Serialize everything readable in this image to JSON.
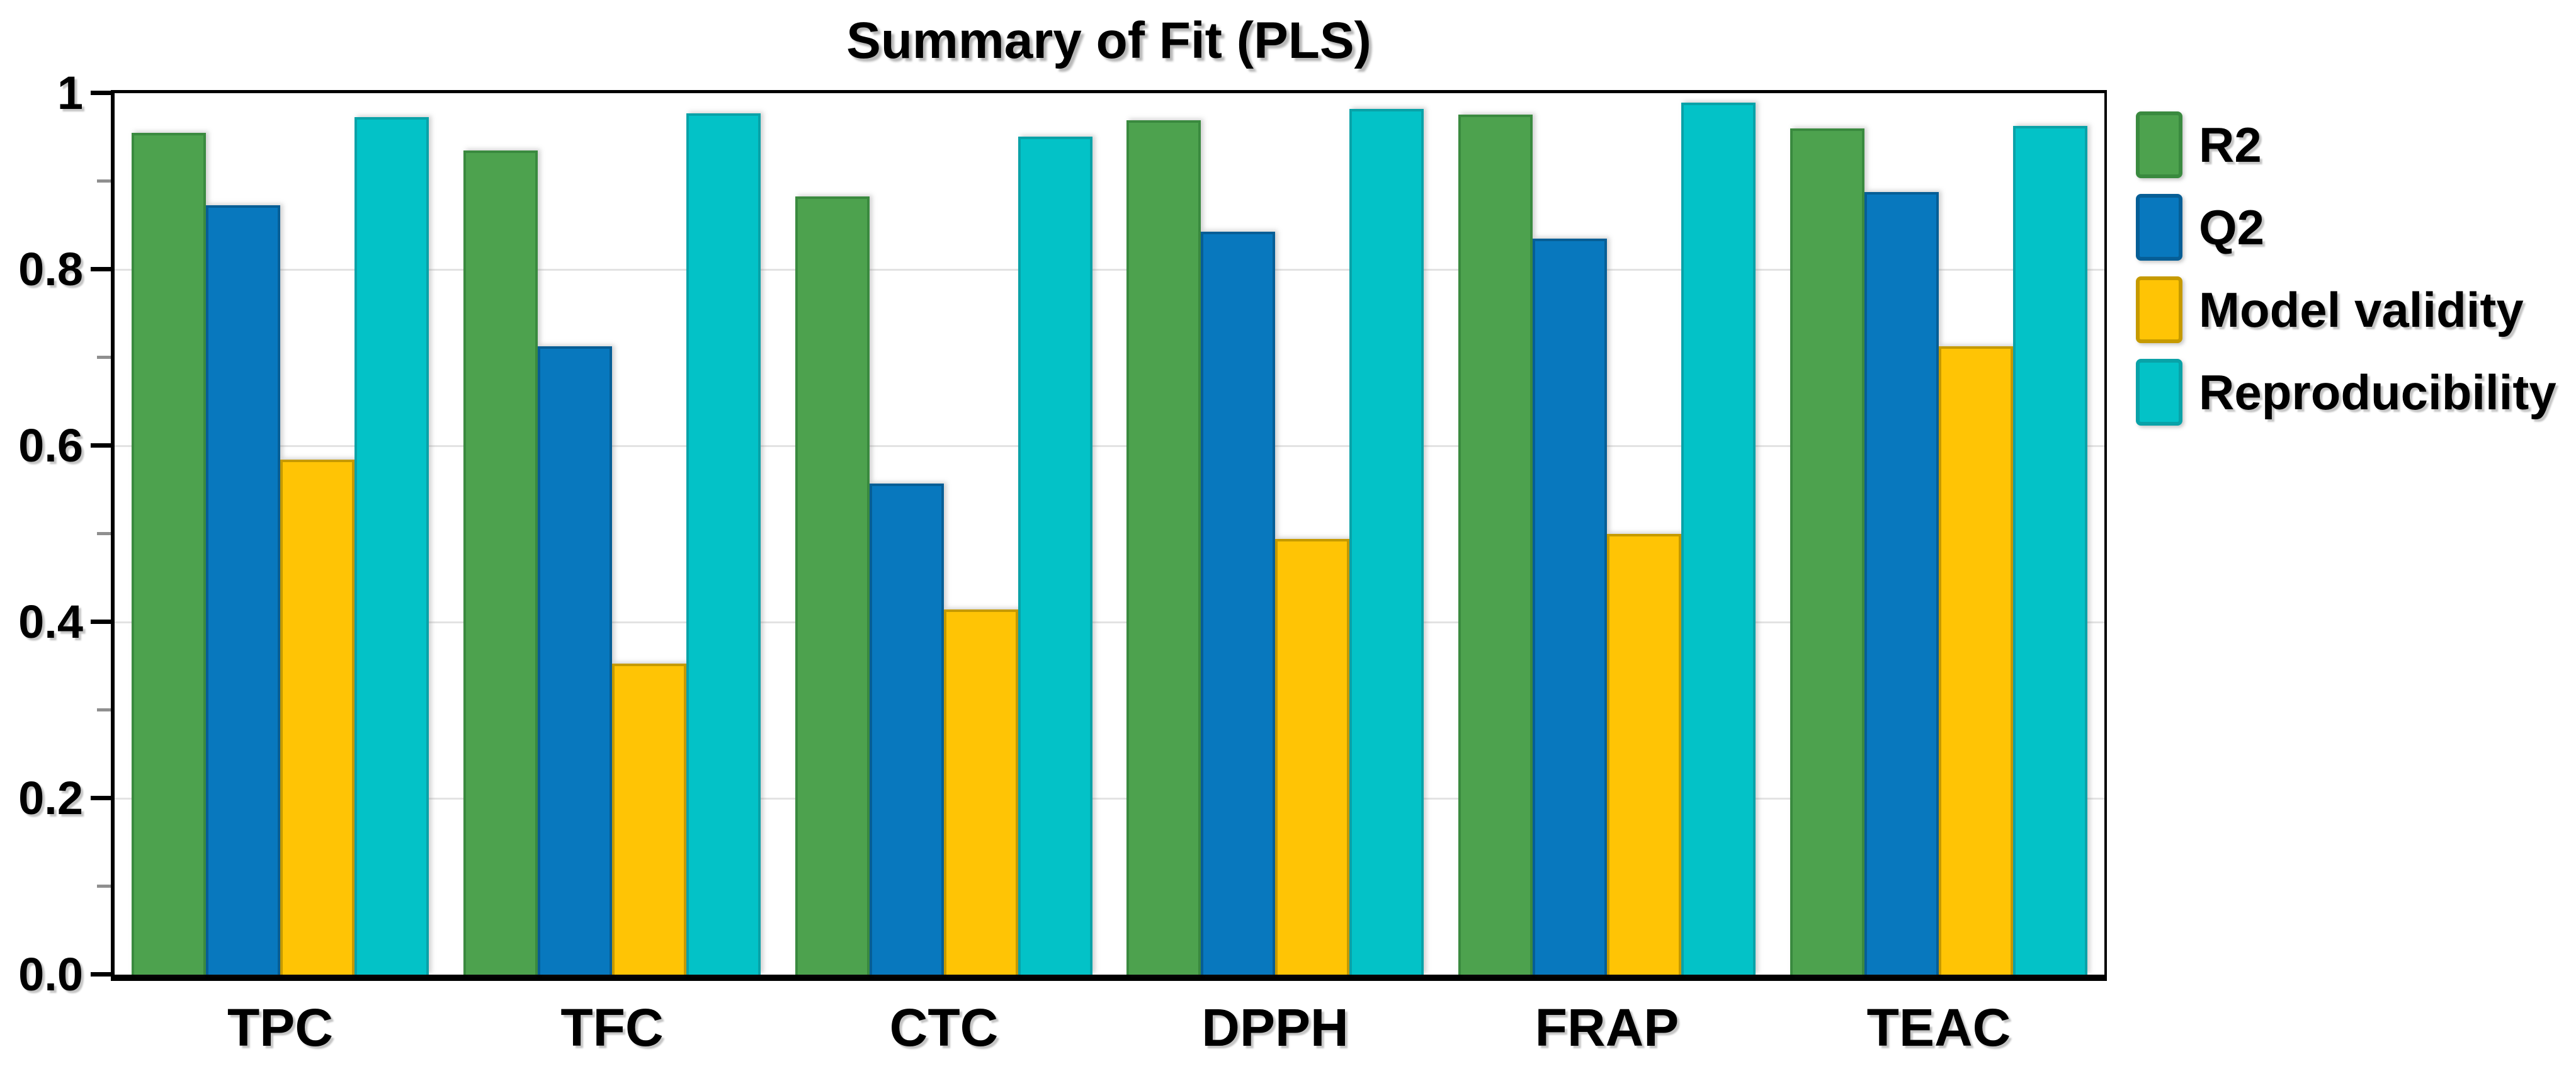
{
  "title": "Summary of Fit (PLS)",
  "chart_data": {
    "type": "bar",
    "title": "Summary of Fit (PLS)",
    "xlabel": "",
    "ylabel": "",
    "categories": [
      "TPC",
      "TFC",
      "CTC",
      "DPPH",
      "FRAP",
      "TEAC"
    ],
    "series": [
      {
        "name": "R2",
        "color": "#4DA24E",
        "border": "#3A8A3F",
        "values": [
          0.955,
          0.935,
          0.883,
          0.969,
          0.976,
          0.96
        ]
      },
      {
        "name": "Q2",
        "color": "#0878BE",
        "border": "#065E96",
        "values": [
          0.873,
          0.713,
          0.557,
          0.843,
          0.835,
          0.888
        ]
      },
      {
        "name": "Model validity",
        "color": "#FFC405",
        "border": "#C69A00",
        "values": [
          0.584,
          0.353,
          0.414,
          0.494,
          0.5,
          0.713
        ]
      },
      {
        "name": "Reproducibility",
        "color": "#03C2C7",
        "border": "#09A2A8",
        "values": [
          0.973,
          0.977,
          0.951,
          0.982,
          0.989,
          0.963
        ]
      }
    ],
    "ylim": [
      0,
      1
    ],
    "yticks_major": [
      1,
      0.8,
      0.6,
      0.4,
      0.2,
      0
    ],
    "ytick_labels": [
      "1",
      "0.8",
      "0.6",
      "0.4",
      "0.2",
      "0.0"
    ],
    "yticks_minor": [
      0.9,
      0.7,
      0.5,
      0.3,
      0.1
    ],
    "gridlines": [
      0.8,
      0.6,
      0.4,
      0.2
    ],
    "grid_on": true,
    "grid_color": "#e3e3e3",
    "frame_color": "#000000",
    "legend_position": "right"
  }
}
